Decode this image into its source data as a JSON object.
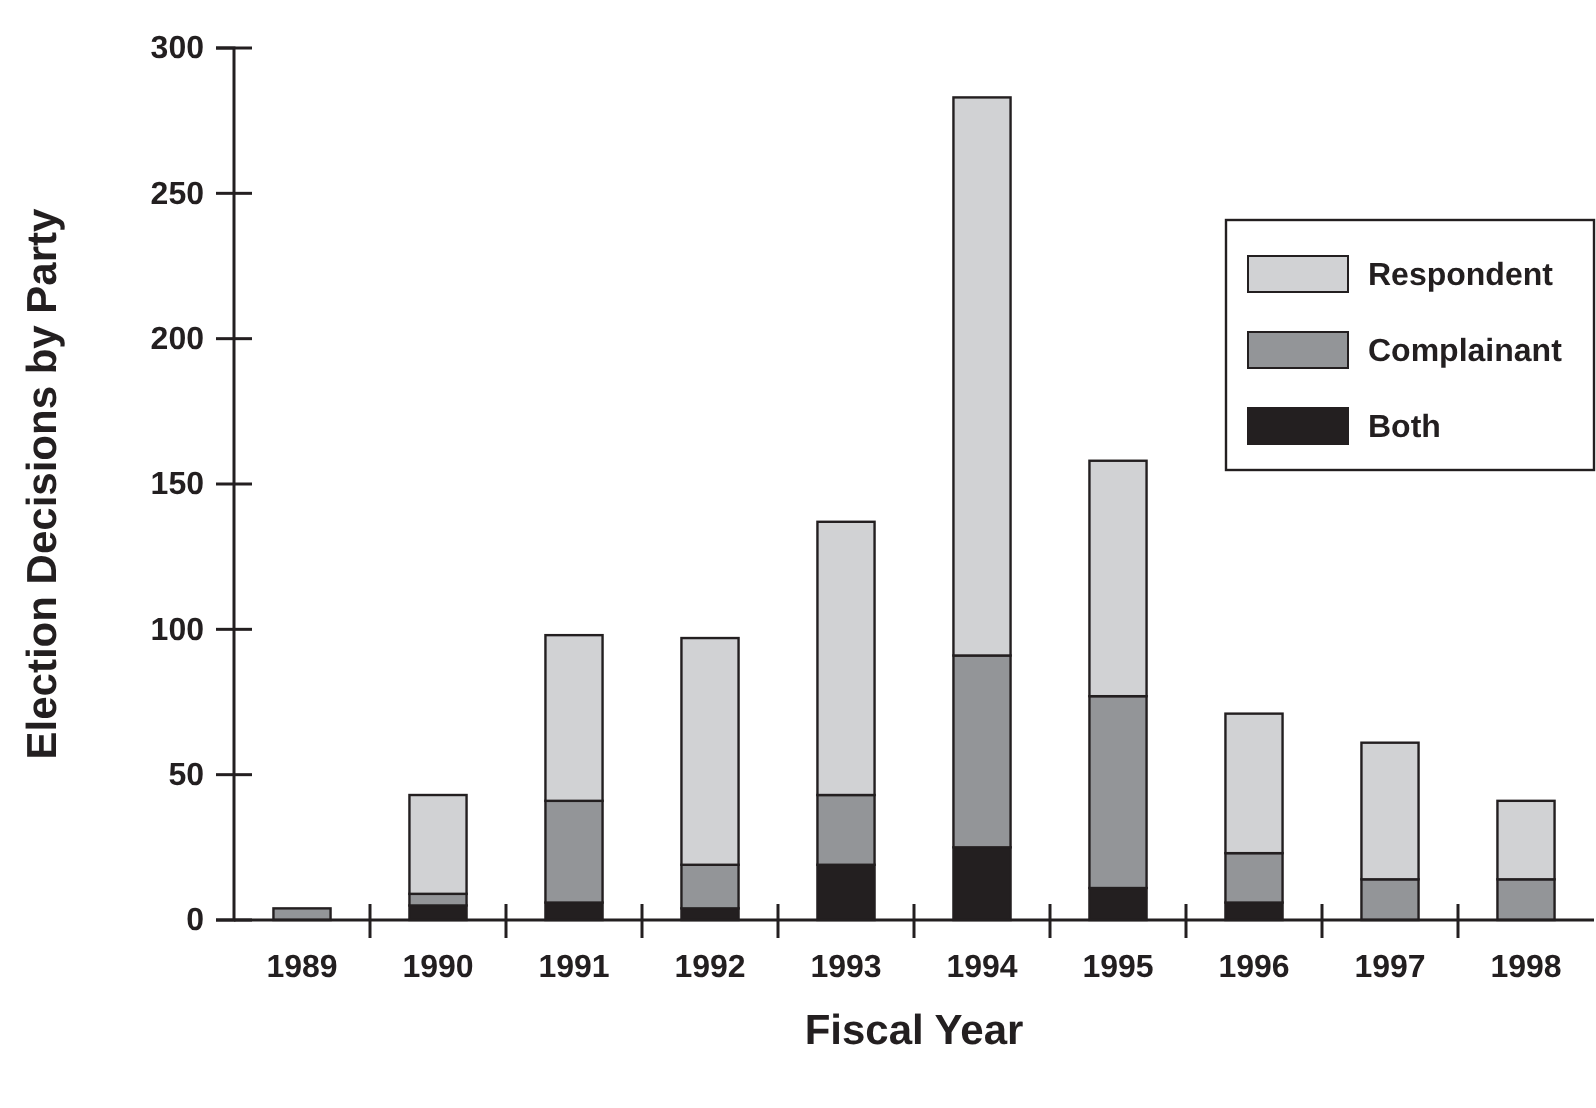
{
  "chart_data": {
    "type": "bar",
    "stacked": true,
    "xlabel": "Fiscal Year",
    "ylabel": "Election Decisions by Party",
    "categories": [
      "1989",
      "1990",
      "1991",
      "1992",
      "1993",
      "1994",
      "1995",
      "1996",
      "1997",
      "1998"
    ],
    "series": [
      {
        "name": "Both",
        "color": "#231f20",
        "values": [
          0,
          5,
          6,
          4,
          19,
          25,
          11,
          6,
          null,
          null
        ]
      },
      {
        "name": "Complainant",
        "color": "#939598",
        "values": [
          4,
          4,
          35,
          15,
          24,
          66,
          66,
          17,
          14,
          14
        ]
      },
      {
        "name": "Respondent",
        "color": "#d1d2d4",
        "values": [
          0,
          34,
          57,
          78,
          94,
          192,
          81,
          48,
          47,
          27
        ]
      }
    ],
    "ylim": [
      0,
      300
    ],
    "yticks": [
      0,
      50,
      100,
      150,
      200,
      250,
      300
    ],
    "grid": false,
    "legend": "top right"
  }
}
